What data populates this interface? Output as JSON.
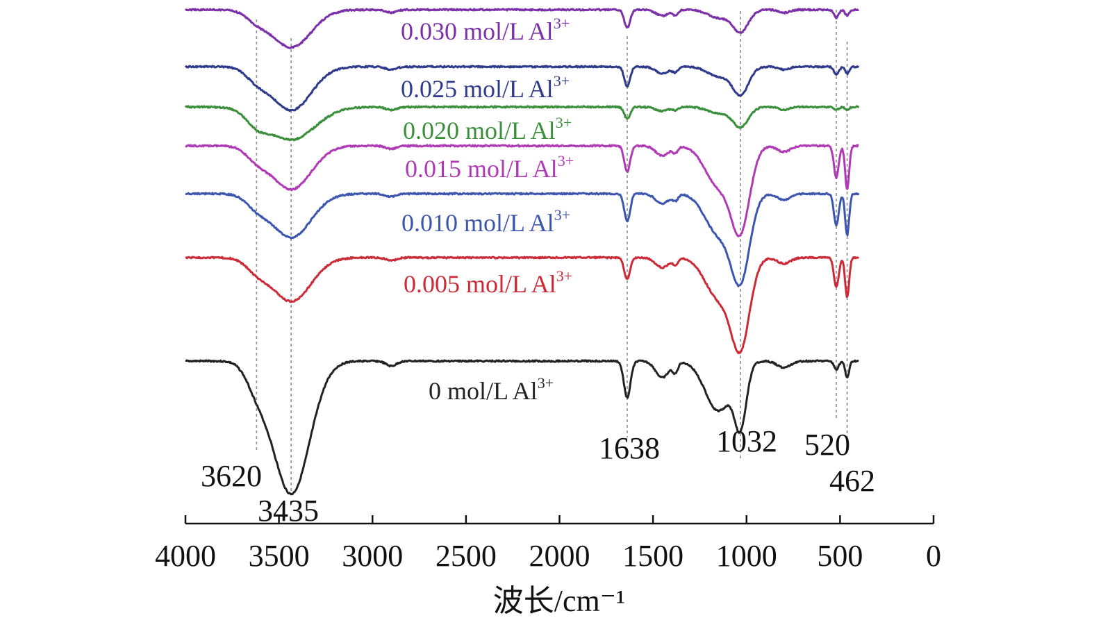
{
  "chart_data": {
    "type": "line",
    "title": "",
    "xlabel": "波长/cm⁻¹",
    "ylabel": "",
    "xlim": [
      4000,
      0
    ],
    "x_ticks": [
      4000,
      3500,
      3000,
      2500,
      2000,
      1500,
      1000,
      500,
      0
    ],
    "x_tick_labels": [
      "4000",
      "3500",
      "3000",
      "2500",
      "2000",
      "1500",
      "1000",
      "500",
      "0"
    ],
    "grid": false,
    "legend": "inline labels above each curve",
    "peak_markers": [
      {
        "wavenumber": 3620,
        "label": "3620"
      },
      {
        "wavenumber": 3435,
        "label": "3435"
      },
      {
        "wavenumber": 1638,
        "label": "1638"
      },
      {
        "wavenumber": 1032,
        "label": "1032"
      },
      {
        "wavenumber": 520,
        "label": "520"
      },
      {
        "wavenumber": 462,
        "label": "462"
      }
    ],
    "x_range_plotted": [
      4000,
      400
    ],
    "series": [
      {
        "name": "0.030 mol/L Al",
        "sup": "3+",
        "color": "#7b2fa8",
        "baseline": 0.95,
        "bands": [
          [
            3620,
            0.08,
            80
          ],
          [
            3435,
            0.38,
            150
          ],
          [
            2900,
            0.03,
            40
          ],
          [
            1638,
            0.18,
            22
          ],
          [
            1450,
            0.06,
            50
          ],
          [
            1380,
            0.05,
            20
          ],
          [
            1150,
            0.08,
            80
          ],
          [
            1032,
            0.22,
            60
          ],
          [
            800,
            0.03,
            40
          ],
          [
            520,
            0.08,
            18
          ],
          [
            462,
            0.06,
            15
          ]
        ]
      },
      {
        "name": "0.025 mol/L Al",
        "sup": "3+",
        "color": "#2e3a8c",
        "baseline": 0.77,
        "bands": [
          [
            3620,
            0.1,
            80
          ],
          [
            3435,
            0.44,
            150
          ],
          [
            2900,
            0.03,
            40
          ],
          [
            1638,
            0.2,
            22
          ],
          [
            1450,
            0.07,
            50
          ],
          [
            1380,
            0.05,
            20
          ],
          [
            1150,
            0.1,
            80
          ],
          [
            1032,
            0.28,
            60
          ],
          [
            800,
            0.03,
            40
          ],
          [
            520,
            0.08,
            18
          ],
          [
            462,
            0.07,
            15
          ]
        ]
      },
      {
        "name": "0.020 mol/L Al",
        "sup": "3+",
        "color": "#3a8f3a",
        "baseline": 0.64,
        "bands": [
          [
            3620,
            0.12,
            80
          ],
          [
            3435,
            0.33,
            180
          ],
          [
            2900,
            0.03,
            40
          ],
          [
            1638,
            0.12,
            22
          ],
          [
            1450,
            0.04,
            50
          ],
          [
            1380,
            0.03,
            20
          ],
          [
            1150,
            0.06,
            80
          ],
          [
            1032,
            0.2,
            60
          ],
          [
            800,
            0.03,
            40
          ],
          [
            520,
            0.03,
            18
          ],
          [
            462,
            0.03,
            15
          ]
        ]
      },
      {
        "name": "0.015 mol/L Al",
        "sup": "3+",
        "color": "#b03ab5",
        "baseline": 0.54,
        "bands": [
          [
            3620,
            0.1,
            80
          ],
          [
            3435,
            0.44,
            150
          ],
          [
            2900,
            0.03,
            40
          ],
          [
            1638,
            0.26,
            22
          ],
          [
            1450,
            0.1,
            50
          ],
          [
            1380,
            0.06,
            20
          ],
          [
            1150,
            0.4,
            100
          ],
          [
            1032,
            0.8,
            70
          ],
          [
            800,
            0.06,
            50
          ],
          [
            520,
            0.32,
            18
          ],
          [
            462,
            0.44,
            15
          ]
        ]
      },
      {
        "name": "0.010 mol/L Al",
        "sup": "3+",
        "color": "#3c56b0",
        "baseline": 0.4,
        "bands": [
          [
            3620,
            0.1,
            80
          ],
          [
            3435,
            0.44,
            150
          ],
          [
            2900,
            0.03,
            40
          ],
          [
            1638,
            0.28,
            22
          ],
          [
            1450,
            0.1,
            50
          ],
          [
            1380,
            0.06,
            20
          ],
          [
            1150,
            0.4,
            100
          ],
          [
            1032,
            0.82,
            70
          ],
          [
            800,
            0.06,
            50
          ],
          [
            520,
            0.32,
            18
          ],
          [
            462,
            0.42,
            15
          ]
        ]
      },
      {
        "name": "0.005 mol/L Al",
        "sup": "3+",
        "color": "#cc2a36",
        "baseline": 0.23,
        "bands": [
          [
            3620,
            0.1,
            80
          ],
          [
            3435,
            0.44,
            150
          ],
          [
            2900,
            0.03,
            40
          ],
          [
            1638,
            0.22,
            22
          ],
          [
            1450,
            0.1,
            50
          ],
          [
            1380,
            0.06,
            20
          ],
          [
            1150,
            0.4,
            100
          ],
          [
            1032,
            0.85,
            70
          ],
          [
            800,
            0.06,
            50
          ],
          [
            520,
            0.3,
            18
          ],
          [
            462,
            0.4,
            15
          ]
        ]
      },
      {
        "name": "0 mol/L Al",
        "sup": "3+",
        "color": "#222222",
        "baseline": 0.0,
        "bands": [
          [
            3620,
            0.12,
            80
          ],
          [
            3435,
            0.8,
            140
          ],
          [
            2900,
            0.03,
            40
          ],
          [
            1638,
            0.22,
            25
          ],
          [
            1450,
            0.1,
            50
          ],
          [
            1380,
            0.06,
            20
          ],
          [
            1150,
            0.3,
            100
          ],
          [
            1032,
            0.35,
            45
          ],
          [
            800,
            0.04,
            50
          ],
          [
            520,
            0.05,
            18
          ],
          [
            462,
            0.1,
            15
          ]
        ]
      }
    ]
  }
}
